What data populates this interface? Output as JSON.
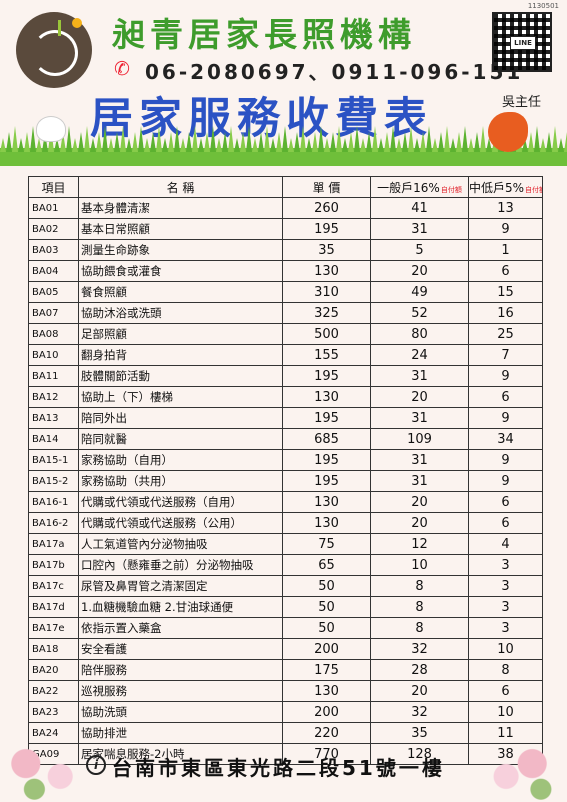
{
  "header": {
    "doc_code": "1130501",
    "org_name": "昶青居家長照機構",
    "phone": "06-2080697、0911-096-151",
    "qr_label": "LINE",
    "contact_person": "吳主任",
    "title": "居家服務收費表"
  },
  "table": {
    "headers": {
      "code": "項目",
      "name": "名 稱",
      "price": "單 價",
      "general": "一般戶16%",
      "general_note": "自付額",
      "low": "中低戶5%",
      "low_note": "自付額"
    },
    "rows": [
      {
        "code": "BA01",
        "name": "基本身體清潔",
        "price": "260",
        "general": "41",
        "low": "13"
      },
      {
        "code": "BA02",
        "name": "基本日常照顧",
        "price": "195",
        "general": "31",
        "low": "9"
      },
      {
        "code": "BA03",
        "name": "測量生命跡象",
        "price": "35",
        "general": "5",
        "low": "1"
      },
      {
        "code": "BA04",
        "name": "協助餵食或灌食",
        "price": "130",
        "general": "20",
        "low": "6"
      },
      {
        "code": "BA05",
        "name": "餐食照顧",
        "price": "310",
        "general": "49",
        "low": "15"
      },
      {
        "code": "BA07",
        "name": "協助沐浴或洗頭",
        "price": "325",
        "general": "52",
        "low": "16"
      },
      {
        "code": "BA08",
        "name": "足部照顧",
        "price": "500",
        "general": "80",
        "low": "25"
      },
      {
        "code": "BA10",
        "name": "翻身拍背",
        "price": "155",
        "general": "24",
        "low": "7"
      },
      {
        "code": "BA11",
        "name": "肢體關節活動",
        "price": "195",
        "general": "31",
        "low": "9"
      },
      {
        "code": "BA12",
        "name": "協助上（下）樓梯",
        "price": "130",
        "general": "20",
        "low": "6"
      },
      {
        "code": "BA13",
        "name": "陪同外出",
        "price": "195",
        "general": "31",
        "low": "9"
      },
      {
        "code": "BA14",
        "name": "陪同就醫",
        "price": "685",
        "general": "109",
        "low": "34"
      },
      {
        "code": "BA15-1",
        "name": "家務協助（自用）",
        "price": "195",
        "general": "31",
        "low": "9"
      },
      {
        "code": "BA15-2",
        "name": "家務協助（共用）",
        "price": "195",
        "general": "31",
        "low": "9"
      },
      {
        "code": "BA16-1",
        "name": "代購或代領或代送服務（自用）",
        "price": "130",
        "general": "20",
        "low": "6"
      },
      {
        "code": "BA16-2",
        "name": "代購或代領或代送服務（公用）",
        "price": "130",
        "general": "20",
        "low": "6"
      },
      {
        "code": "BA17a",
        "name": "人工氣道管內分泌物抽吸",
        "price": "75",
        "general": "12",
        "low": "4"
      },
      {
        "code": "BA17b",
        "name": "口腔內（懸雍垂之前）分泌物抽吸",
        "price": "65",
        "general": "10",
        "low": "3"
      },
      {
        "code": "BA17c",
        "name": "尿管及鼻胃管之清潔固定",
        "price": "50",
        "general": "8",
        "low": "3"
      },
      {
        "code": "BA17d",
        "name": "1.血糖機驗血糖 2.甘油球通便",
        "price": "50",
        "general": "8",
        "low": "3"
      },
      {
        "code": "BA17e",
        "name": "依指示置入藥盒",
        "price": "50",
        "general": "8",
        "low": "3"
      },
      {
        "code": "BA18",
        "name": "安全看護",
        "price": "200",
        "general": "32",
        "low": "10"
      },
      {
        "code": "BA20",
        "name": "陪伴服務",
        "price": "175",
        "general": "28",
        "low": "8"
      },
      {
        "code": "BA22",
        "name": "巡視服務",
        "price": "130",
        "general": "20",
        "low": "6"
      },
      {
        "code": "BA23",
        "name": "協助洗頭",
        "price": "200",
        "general": "32",
        "low": "10"
      },
      {
        "code": "BA24",
        "name": "協助排泄",
        "price": "220",
        "general": "35",
        "low": "11"
      },
      {
        "code": "GA09",
        "name": "居家喘息服務-2小時",
        "price": "770",
        "general": "128",
        "low": "38"
      }
    ]
  },
  "footer": {
    "address": "台南市東區東光路二段51號一樓"
  },
  "colors": {
    "org_name": "#3e9c2c",
    "title": "#2b52c4",
    "note_red": "#e0202a",
    "background": "#fbf3ef"
  },
  "icons": [
    "logo-emblem",
    "phone-icon",
    "qr-code",
    "rabbit-illustration",
    "squirrel-illustration",
    "grass-decoration",
    "flower-decoration",
    "info-pin-icon"
  ]
}
